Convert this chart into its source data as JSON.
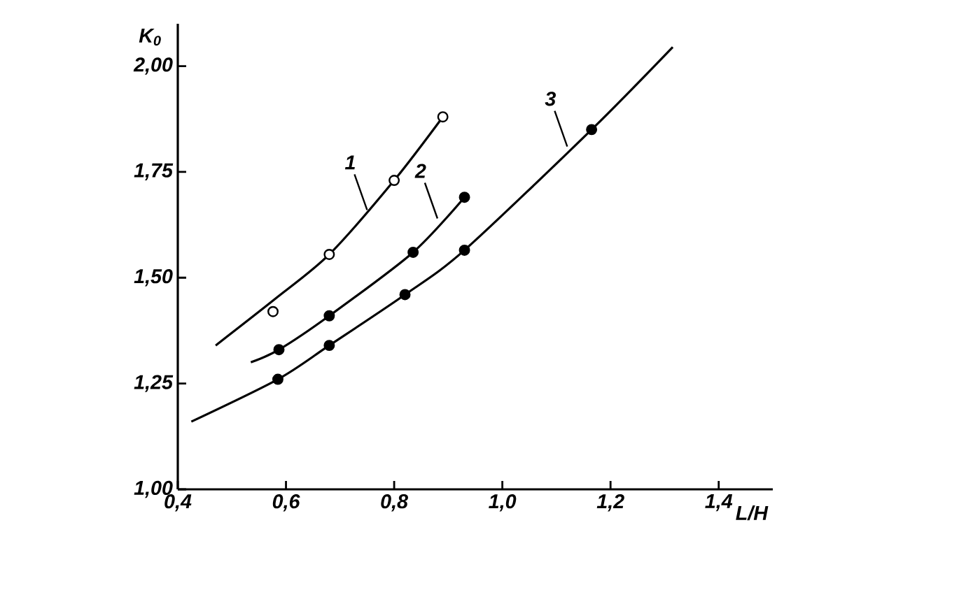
{
  "chart_data": {
    "type": "line",
    "xlabel": "L/H",
    "ylabel": "K$_{0}$",
    "xlim": [
      0.4,
      1.5
    ],
    "ylim": [
      1.0,
      2.1
    ],
    "xticks": [
      {
        "value": 0.4,
        "label": "0,4"
      },
      {
        "value": 0.6,
        "label": "0,6"
      },
      {
        "value": 0.8,
        "label": "0,8"
      },
      {
        "value": 1.0,
        "label": "1,0"
      },
      {
        "value": 1.2,
        "label": "1,2"
      },
      {
        "value": 1.4,
        "label": "1,4"
      }
    ],
    "yticks": [
      {
        "value": 1.0,
        "label": "1,00"
      },
      {
        "value": 1.25,
        "label": "1,25"
      },
      {
        "value": 1.5,
        "label": "1,50"
      },
      {
        "value": 1.75,
        "label": "1,75"
      },
      {
        "value": 2.0,
        "label": "2,00"
      }
    ],
    "grid": false,
    "line_style": "solid",
    "series": [
      {
        "color": "#000000",
        "marker": "none",
        "x": [
          0.47,
          0.58,
          0.68,
          0.8,
          0.89
        ],
        "values": [
          1.34,
          1.45,
          1.555,
          1.73,
          1.88
        ]
      },
      {
        "color": "#000000",
        "marker": "none",
        "x": [
          0.535,
          0.587,
          0.68,
          0.835,
          0.93
        ],
        "values": [
          1.3,
          1.33,
          1.41,
          1.56,
          1.69
        ]
      },
      {
        "color": "#000000",
        "marker": "none",
        "x": [
          0.425,
          0.585,
          0.68,
          0.82,
          0.93,
          1.165,
          1.315
        ],
        "values": [
          1.16,
          1.26,
          1.34,
          1.46,
          1.565,
          1.85,
          2.045
        ]
      },
      {
        "type": "scatter",
        "color": "#ffffff",
        "marker": "circle",
        "x": [
          0.576,
          0.68,
          0.8,
          0.89
        ],
        "values": [
          1.42,
          1.555,
          1.73,
          1.88
        ]
      },
      {
        "type": "scatter",
        "color": "#000000",
        "marker": "circle",
        "x": [
          0.587,
          0.68,
          0.835,
          0.93
        ],
        "values": [
          1.33,
          1.41,
          1.56,
          1.69
        ]
      },
      {
        "type": "scatter",
        "color": "#000000",
        "marker": "circle",
        "x": [
          0.585,
          0.68,
          0.82,
          0.93,
          1.165
        ],
        "values": [
          1.26,
          1.34,
          1.46,
          1.565,
          1.85
        ]
      }
    ],
    "annotations": [
      {
        "text": "1",
        "x": 0.75,
        "y": 1.66
      },
      {
        "text": "2",
        "x": 0.88,
        "y": 1.64
      },
      {
        "text": "3",
        "x": 1.12,
        "y": 1.81
      }
    ]
  }
}
